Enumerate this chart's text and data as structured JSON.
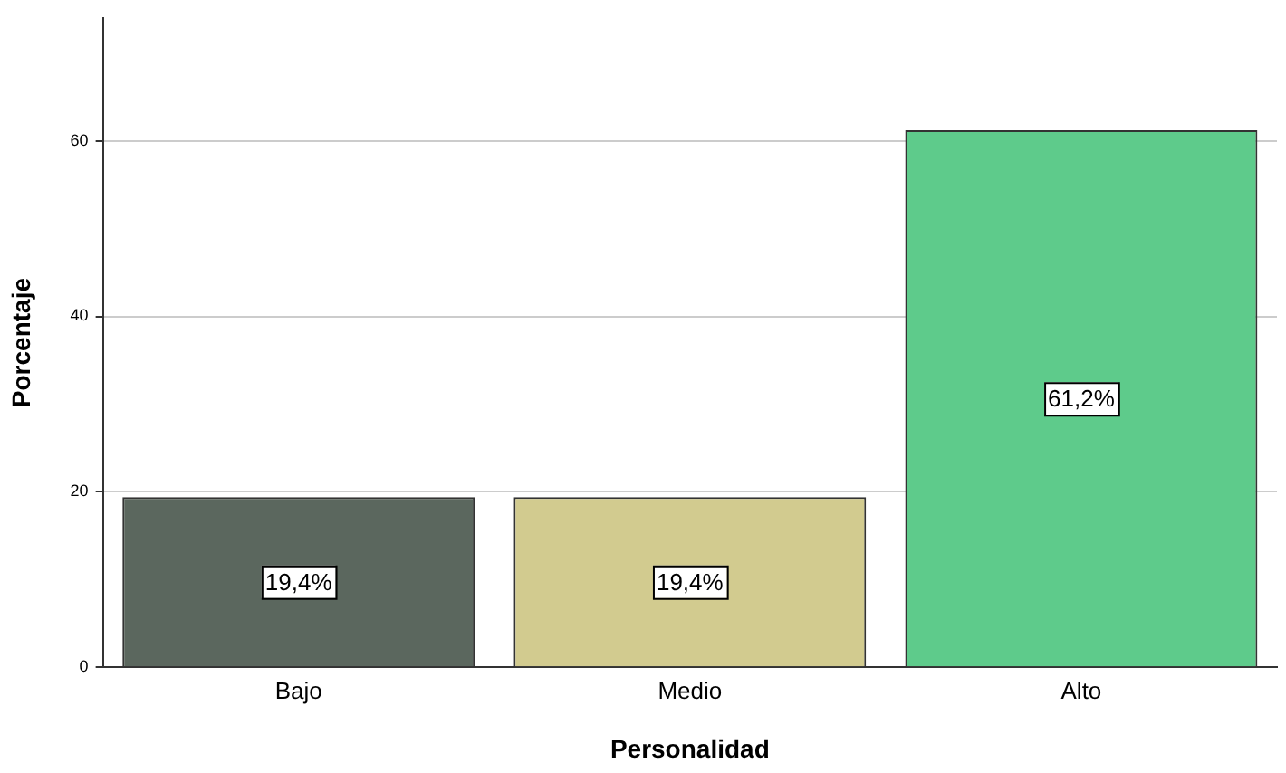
{
  "chart_data": {
    "type": "bar",
    "xlabel": "Personalidad",
    "ylabel": "Porcentaje",
    "categories": [
      "Bajo",
      "Medio",
      "Alto"
    ],
    "values": [
      19.4,
      19.4,
      61.2
    ],
    "colors": [
      "#5b675e",
      "#d2cb8f",
      "#5ecb8b"
    ],
    "value_labels": [
      "19,4%",
      "19,4%",
      "61,2%"
    ],
    "ylim": [
      0,
      74
    ],
    "yticks": [
      0,
      20,
      40,
      60
    ],
    "grid": "y",
    "legend": false
  }
}
